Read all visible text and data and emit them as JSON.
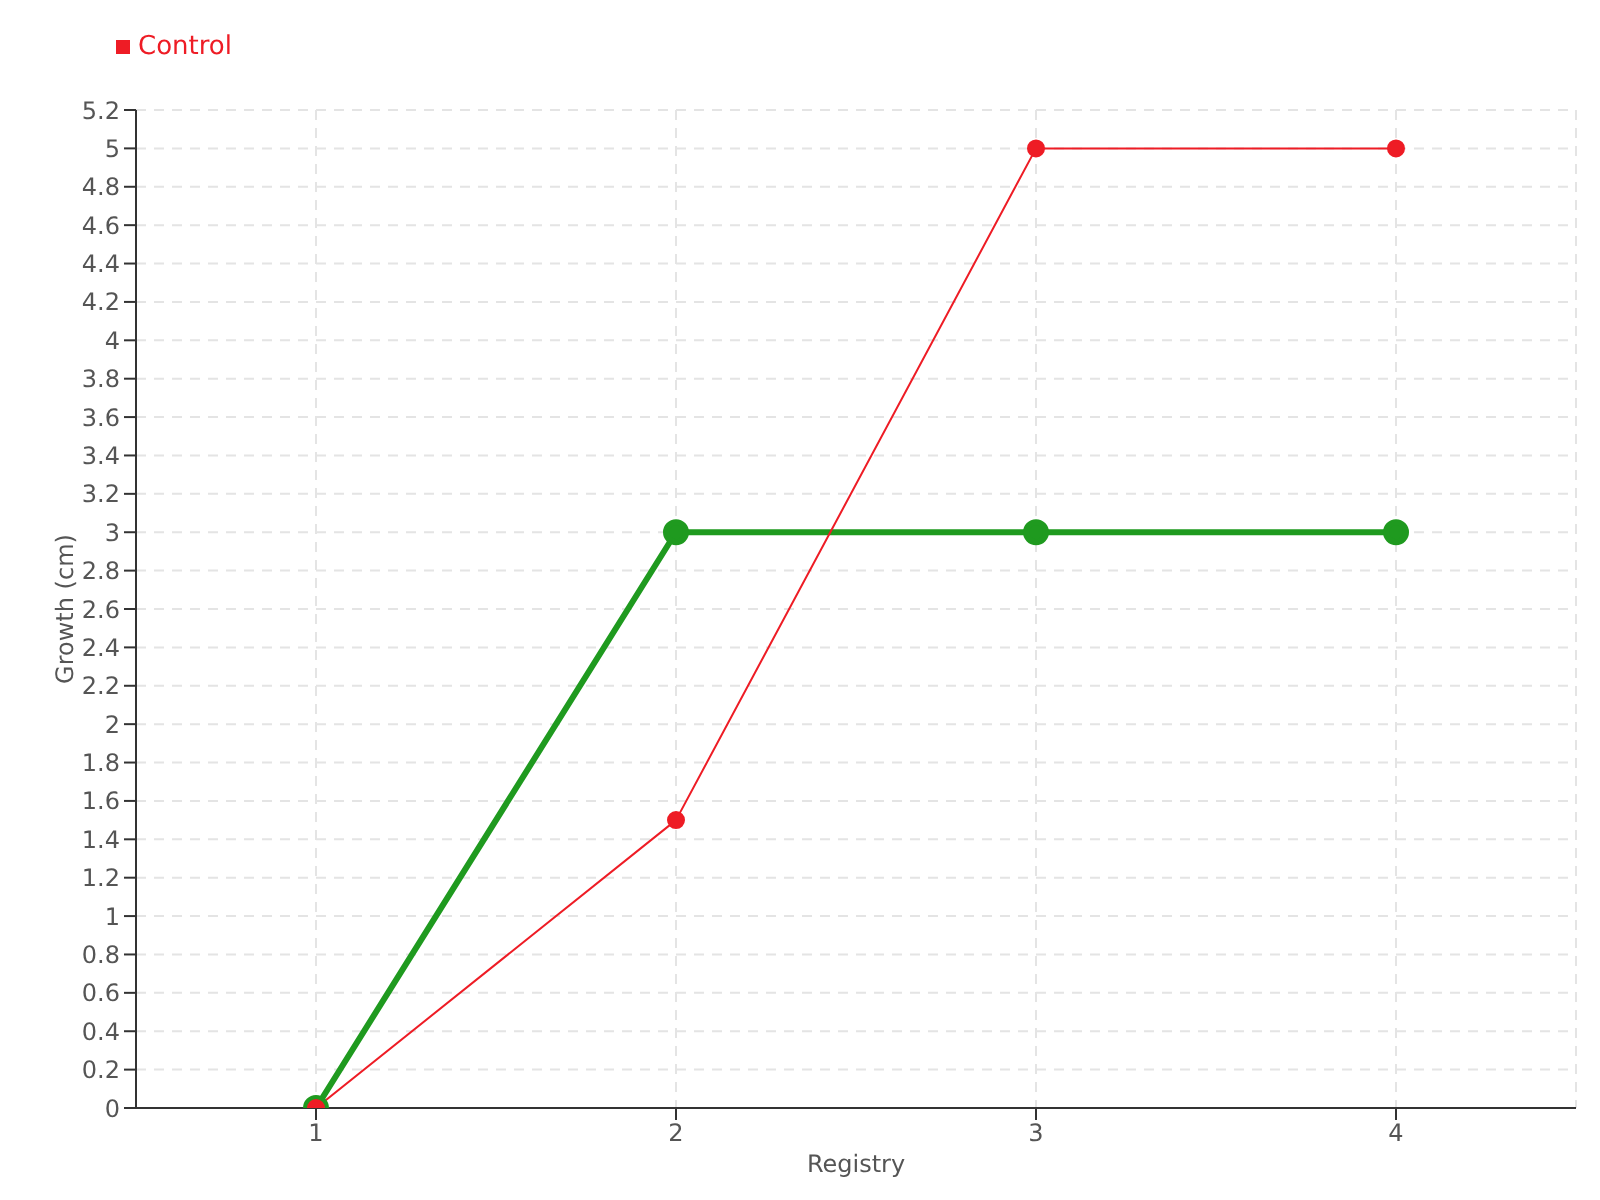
{
  "chart_data": {
    "type": "line",
    "xlabel": "Registry",
    "ylabel": "Growth (cm)",
    "x": [
      1,
      2,
      3,
      4
    ],
    "series": [
      {
        "color": "#1f9a1f",
        "values": [
          0,
          3,
          3,
          3
        ]
      },
      {
        "name": "Control",
        "color": "#ee1c25",
        "values": [
          0,
          1.5,
          5,
          5
        ]
      }
    ],
    "xlim": [
      0.5,
      4.5
    ],
    "xticks": [
      1,
      2,
      3,
      4
    ],
    "ylim": [
      0,
      5.2
    ],
    "yticks": [
      0,
      0.2,
      0.4,
      0.6,
      0.8,
      1,
      1.2,
      1.4,
      1.6,
      1.8,
      2,
      2.2,
      2.4,
      2.6,
      2.8,
      3,
      3.2,
      3.4,
      3.6,
      3.8,
      4,
      4.2,
      4.4,
      4.6,
      4.8,
      5,
      5.2
    ],
    "grid": true,
    "legend": "top left",
    "marker": "circle",
    "line_style": "solid"
  }
}
